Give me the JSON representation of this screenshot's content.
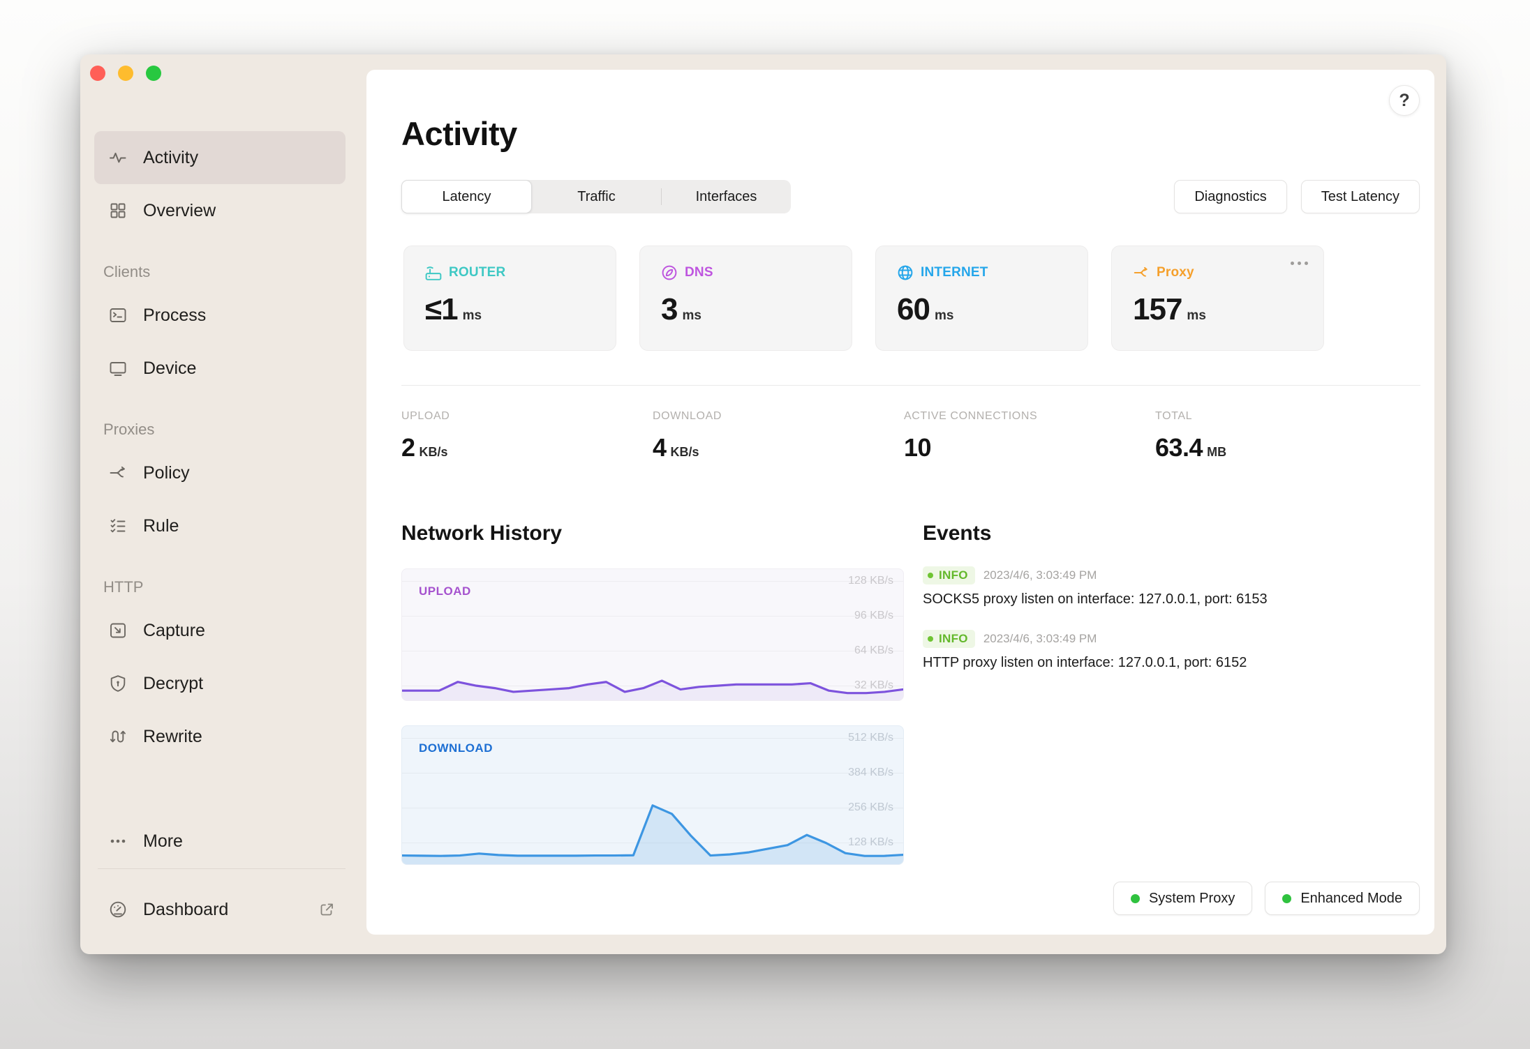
{
  "window": {
    "traffic_lights": [
      {
        "name": "close",
        "color": "#FF5F57"
      },
      {
        "name": "minimize",
        "color": "#FEBC2E"
      },
      {
        "name": "zoom",
        "color": "#28C840"
      }
    ]
  },
  "sidebar": {
    "sections": [
      {
        "header": "",
        "items": [
          {
            "id": "activity",
            "label": "Activity",
            "icon": "activity-icon",
            "selected": true
          },
          {
            "id": "overview",
            "label": "Overview",
            "icon": "overview-icon",
            "selected": false
          }
        ]
      },
      {
        "header": "Clients",
        "items": [
          {
            "id": "process",
            "label": "Process",
            "icon": "process-icon",
            "selected": false
          },
          {
            "id": "device",
            "label": "Device",
            "icon": "device-icon",
            "selected": false
          }
        ]
      },
      {
        "header": "Proxies",
        "items": [
          {
            "id": "policy",
            "label": "Policy",
            "icon": "policy-icon",
            "selected": false
          },
          {
            "id": "rule",
            "label": "Rule",
            "icon": "rule-icon",
            "selected": false
          }
        ]
      },
      {
        "header": "HTTP",
        "items": [
          {
            "id": "capture",
            "label": "Capture",
            "icon": "capture-icon",
            "selected": false
          },
          {
            "id": "decrypt",
            "label": "Decrypt",
            "icon": "decrypt-icon",
            "selected": false
          },
          {
            "id": "rewrite",
            "label": "Rewrite",
            "icon": "rewrite-icon",
            "selected": false
          }
        ]
      }
    ],
    "more": {
      "id": "more",
      "label": "More",
      "icon": "more-icon"
    },
    "dashboard": {
      "id": "dashboard",
      "label": "Dashboard",
      "icon": "dashboard-icon",
      "trailing_icon": "external-link-icon"
    }
  },
  "header": {
    "title": "Activity",
    "help_label": "?",
    "tabs": [
      {
        "label": "Latency",
        "selected": true
      },
      {
        "label": "Traffic",
        "selected": false
      },
      {
        "label": "Interfaces",
        "selected": false
      }
    ],
    "actions": [
      "Diagnostics",
      "Test Latency"
    ]
  },
  "latency_cards": [
    {
      "name": "ROUTER",
      "value": "≤1",
      "unit": "ms",
      "color": "#3EC8C4",
      "icon": "router-icon",
      "has_menu": false
    },
    {
      "name": "DNS",
      "value": "3",
      "unit": "ms",
      "color": "#BE55DF",
      "icon": "dns-icon",
      "has_menu": false
    },
    {
      "name": "INTERNET",
      "value": "60",
      "unit": "ms",
      "color": "#25A6EA",
      "icon": "internet-icon",
      "has_menu": false
    },
    {
      "name": "Proxy",
      "value": "157",
      "unit": "ms",
      "color": "#F5A02C",
      "icon": "proxy-icon",
      "has_menu": true
    }
  ],
  "stats": [
    {
      "label": "UPLOAD",
      "value": "2",
      "unit": "KB/s"
    },
    {
      "label": "DOWNLOAD",
      "value": "4",
      "unit": "KB/s"
    },
    {
      "label": "ACTIVE CONNECTIONS",
      "value": "10",
      "unit": ""
    },
    {
      "label": "TOTAL",
      "value": "63.4",
      "unit": "MB"
    }
  ],
  "network_history": {
    "title": "Network History"
  },
  "events": {
    "title": "Events",
    "items": [
      {
        "level": "INFO",
        "timestamp": "2023/4/6, 3:03:49 PM",
        "message": "SOCKS5 proxy listen on interface: 127.0.0.1, port: 6153"
      },
      {
        "level": "INFO",
        "timestamp": "2023/4/6, 3:03:49 PM",
        "message": "HTTP proxy listen on interface: 127.0.0.1, port: 6152"
      }
    ]
  },
  "footer_badges": [
    {
      "label": "System Proxy",
      "status_color": "#2FC23F"
    },
    {
      "label": "Enhanced Mode",
      "status_color": "#2FC23F"
    }
  ],
  "chart_data": [
    {
      "type": "area",
      "title": "UPLOAD",
      "unit": "KB/s",
      "grid_labels": [
        "128 KB/s",
        "96 KB/s",
        "64 KB/s",
        "32 KB/s"
      ],
      "ylim": [
        0,
        90
      ],
      "values": [
        3,
        3,
        3,
        10,
        7,
        5,
        2,
        3,
        4,
        5,
        8,
        10,
        2,
        5,
        11,
        4,
        6,
        7,
        8,
        8,
        8,
        8,
        9,
        3,
        1,
        1,
        2,
        4
      ],
      "line_color": "#7D53DD",
      "label_color": "#A552CE",
      "bg_color": "#F8F7FB",
      "border_color": "#EFEDF3",
      "grid_label_color": "#C9C7CB",
      "fill_opacity": 0.08
    },
    {
      "type": "area",
      "title": "DOWNLOAD",
      "unit": "KB/s",
      "grid_labels": [
        "512 KB/s",
        "384 KB/s",
        "256 KB/s",
        "128 KB/s"
      ],
      "ylim": [
        0,
        560
      ],
      "values": [
        13,
        12,
        11,
        13,
        22,
        15,
        12,
        12,
        12,
        12,
        13,
        13,
        14,
        250,
        210,
        105,
        13,
        18,
        28,
        45,
        62,
        110,
        72,
        24,
        11,
        11,
        16
      ],
      "line_color": "#3D96E2",
      "label_color": "#1D6FD3",
      "bg_color": "#EFF5FB",
      "border_color": "#E3ECF5",
      "grid_label_color": "#BFC8D2",
      "fill_opacity": 0.16
    }
  ]
}
